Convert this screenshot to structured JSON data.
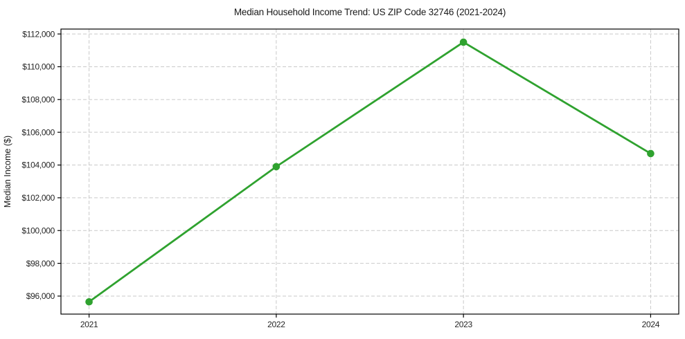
{
  "chart_data": {
    "type": "line",
    "title": "Median Household Income Trend: US ZIP Code 32746 (2021-2024)",
    "ylabel": "Median Income ($)",
    "xlabel": "",
    "categories": [
      "2021",
      "2022",
      "2023",
      "2024"
    ],
    "values": [
      95650,
      103900,
      111500,
      104700
    ],
    "ylim": [
      94900,
      112300
    ],
    "yticks": [
      96000,
      98000,
      100000,
      102000,
      104000,
      106000,
      108000,
      110000,
      112000
    ],
    "ytick_labels": [
      "$96,000",
      "$98,000",
      "$100,000",
      "$102,000",
      "$104,000",
      "$106,000",
      "$108,000",
      "$110,000",
      "$112,000"
    ],
    "grid": true,
    "legend": false,
    "line_color": "#2fa22f",
    "marker_color": "#2fa22f",
    "grid_color": "#c9c9c9",
    "axis_color": "#000000",
    "tick_label_color": "#262626",
    "background": "#ffffff",
    "marker_style": "filled-circle"
  }
}
